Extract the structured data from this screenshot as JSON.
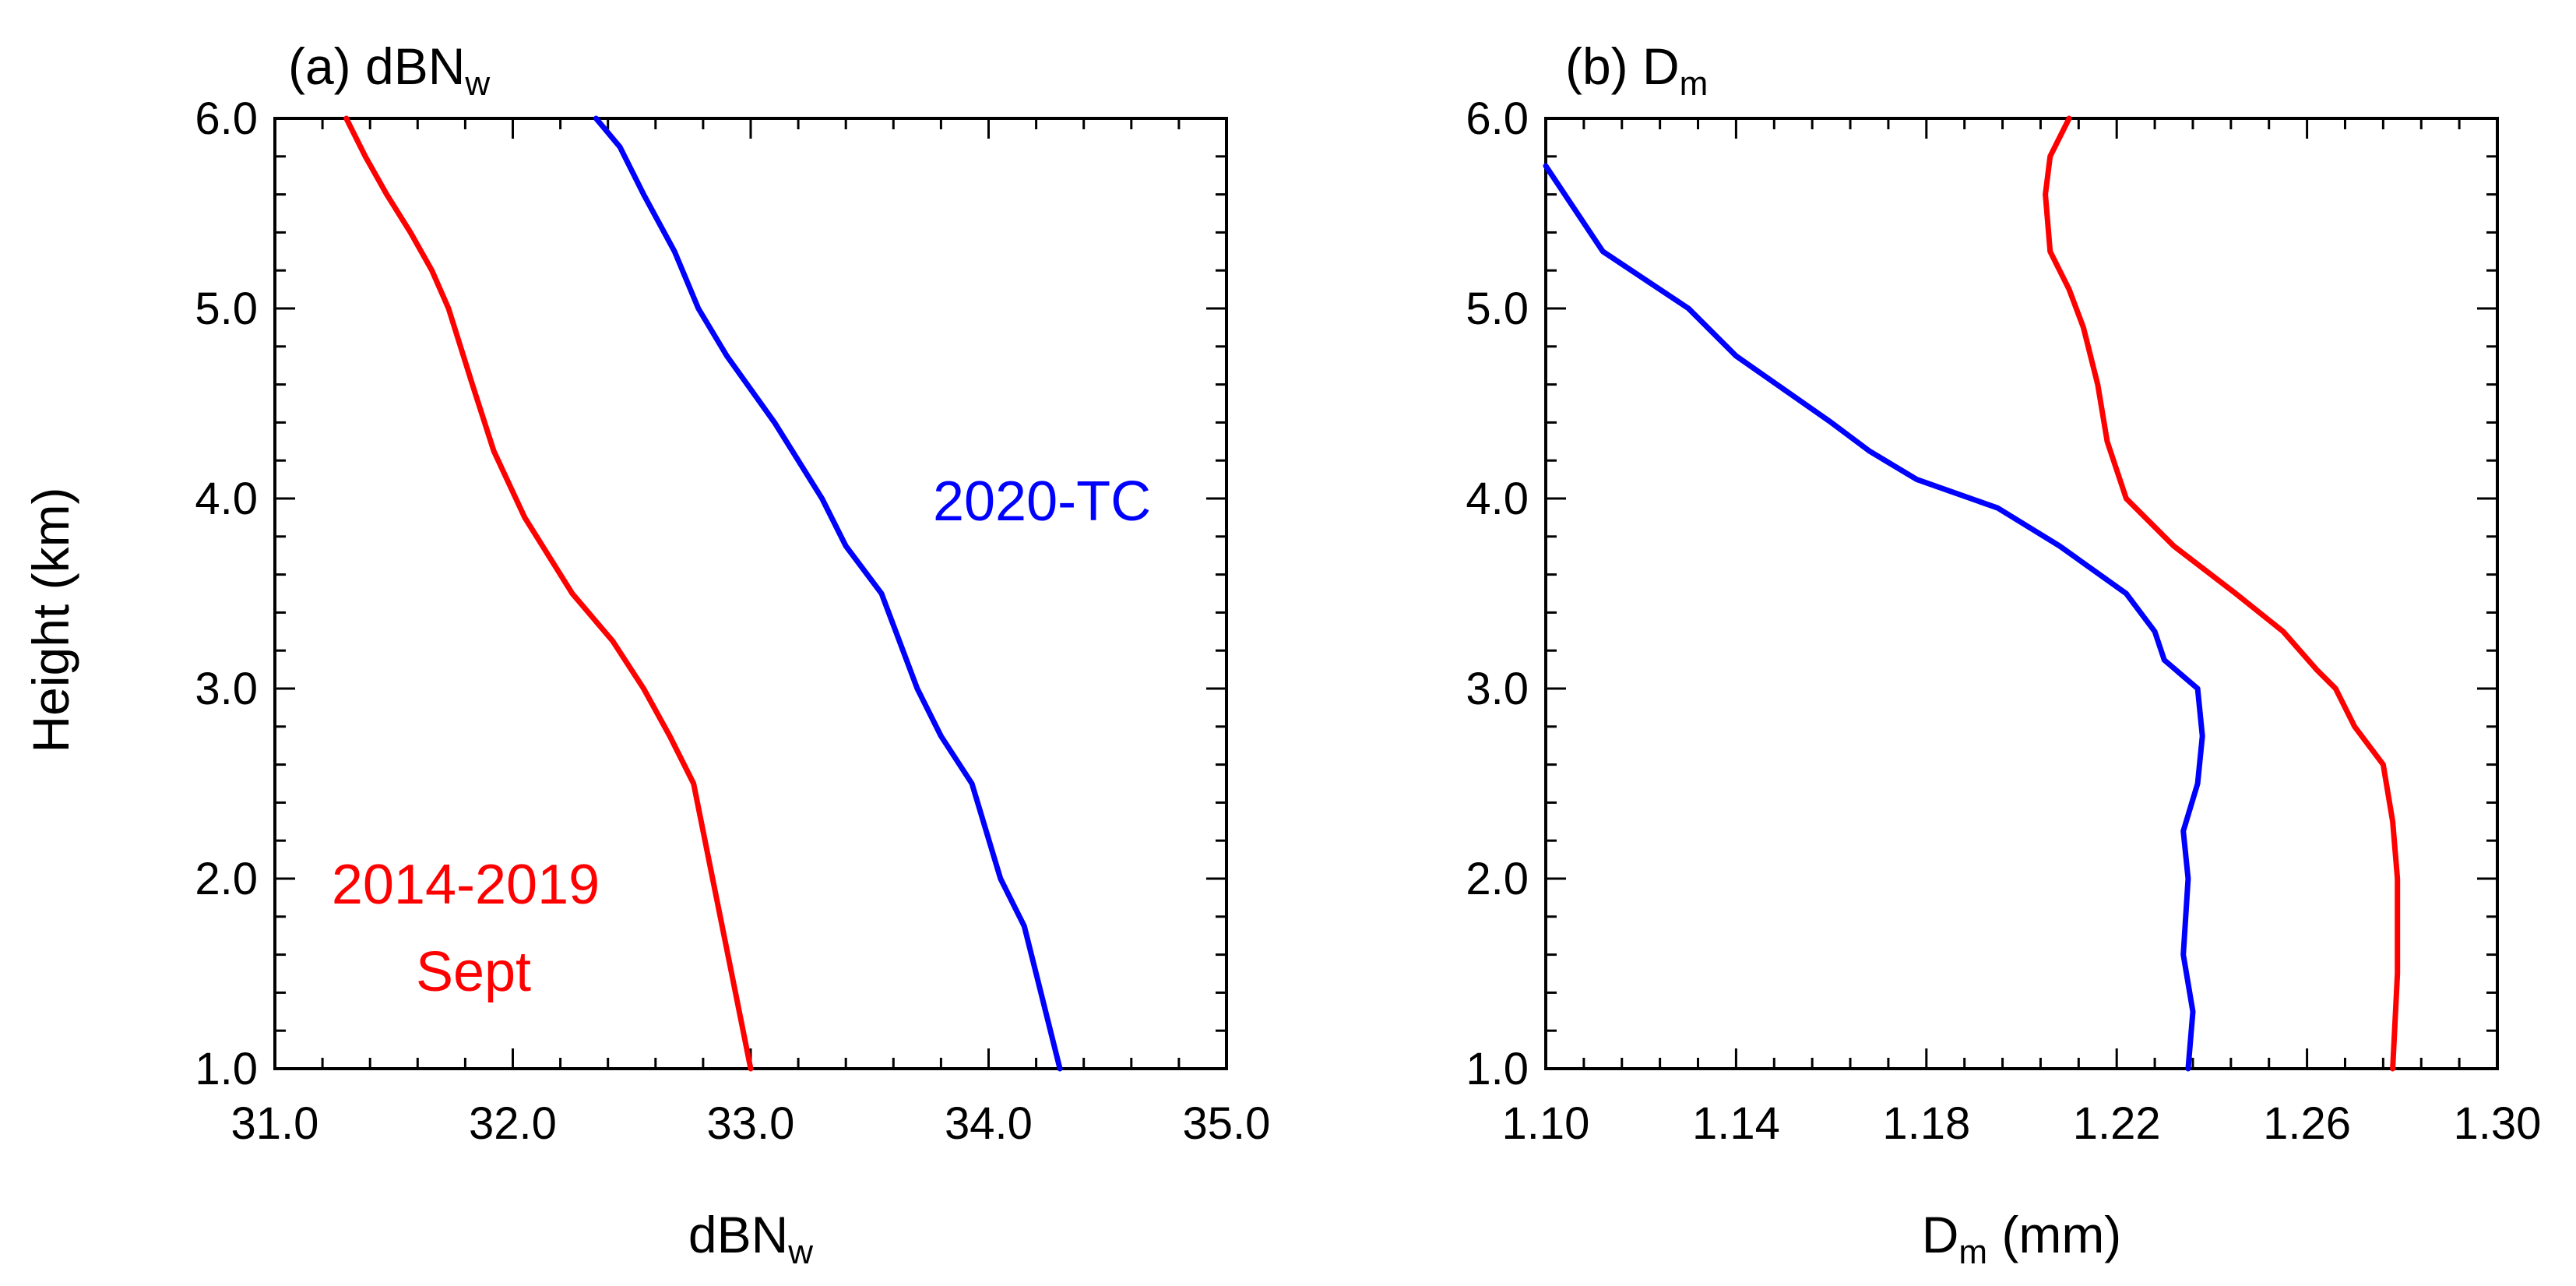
{
  "ylabel": "Height (km)",
  "colors": {
    "red": "#ff0000",
    "blue": "#0000ff"
  },
  "chart_data": [
    {
      "type": "line",
      "title_prefix": "(a) dBN",
      "title_sub": "w",
      "xlabel_prefix": "dBN",
      "xlabel_sub": "w",
      "xlabel_suffix": "",
      "xlim": [
        31.0,
        35.0
      ],
      "ylim": [
        1.0,
        6.0
      ],
      "xticks": [
        "31.0",
        "32.0",
        "33.0",
        "34.0",
        "35.0"
      ],
      "yticks": [
        "1.0",
        "2.0",
        "3.0",
        "4.0",
        "5.0",
        "6.0"
      ],
      "series": [
        {
          "name": "2014-2019 Sept",
          "label_lines": [
            "2014-2019",
            "Sept"
          ],
          "color": "#ff0000",
          "x": [
            33.0,
            32.92,
            32.84,
            32.76,
            32.66,
            32.55,
            32.42,
            32.25,
            32.05,
            31.92,
            31.83,
            31.73,
            31.66,
            31.57,
            31.47,
            31.38,
            31.3
          ],
          "y": [
            1.0,
            1.5,
            2.0,
            2.5,
            2.75,
            3.0,
            3.25,
            3.5,
            3.9,
            4.25,
            4.6,
            5.0,
            5.2,
            5.4,
            5.6,
            5.8,
            6.0
          ]
        },
        {
          "name": "2020-TC",
          "label_lines": [
            "2020-TC"
          ],
          "color": "#0000ff",
          "x": [
            34.3,
            34.2,
            34.15,
            34.05,
            33.93,
            33.8,
            33.7,
            33.55,
            33.4,
            33.3,
            33.1,
            32.9,
            32.78,
            32.68,
            32.55,
            32.45,
            32.35
          ],
          "y": [
            1.0,
            1.5,
            1.75,
            2.0,
            2.5,
            2.75,
            3.0,
            3.5,
            3.75,
            4.0,
            4.4,
            4.75,
            5.0,
            5.3,
            5.6,
            5.85,
            6.0
          ]
        }
      ]
    },
    {
      "type": "line",
      "title_prefix": "(b) D",
      "title_sub": "m",
      "xlabel_prefix": "D",
      "xlabel_sub": "m",
      "xlabel_suffix": " (mm)",
      "xlim": [
        1.1,
        1.3
      ],
      "ylim": [
        1.0,
        6.0
      ],
      "xticks": [
        "1.10",
        "1.14",
        "1.18",
        "1.22",
        "1.26",
        "1.30"
      ],
      "yticks": [
        "1.0",
        "2.0",
        "3.0",
        "4.0",
        "5.0",
        "6.0"
      ],
      "series": [
        {
          "name": "2014-2019 Sept",
          "color": "#ff0000",
          "x": [
            1.278,
            1.279,
            1.279,
            1.278,
            1.276,
            1.27,
            1.266,
            1.262,
            1.255,
            1.245,
            1.232,
            1.222,
            1.218,
            1.216,
            1.213,
            1.21,
            1.206,
            1.205,
            1.206,
            1.21
          ],
          "y": [
            1.0,
            1.5,
            2.0,
            2.3,
            2.6,
            2.8,
            3.0,
            3.1,
            3.3,
            3.5,
            3.75,
            4.0,
            4.3,
            4.6,
            4.9,
            5.1,
            5.3,
            5.6,
            5.8,
            6.0
          ]
        },
        {
          "name": "2020-TC",
          "color": "#0000ff",
          "x": [
            1.235,
            1.236,
            1.234,
            1.235,
            1.234,
            1.237,
            1.238,
            1.237,
            1.23,
            1.228,
            1.222,
            1.208,
            1.195,
            1.178,
            1.168,
            1.16,
            1.14,
            1.13,
            1.112,
            1.104,
            1.1
          ],
          "y": [
            1.0,
            1.3,
            1.6,
            2.0,
            2.25,
            2.5,
            2.75,
            3.0,
            3.15,
            3.3,
            3.5,
            3.75,
            3.95,
            4.1,
            4.25,
            4.4,
            4.75,
            5.0,
            5.3,
            5.6,
            5.75
          ]
        }
      ]
    }
  ]
}
